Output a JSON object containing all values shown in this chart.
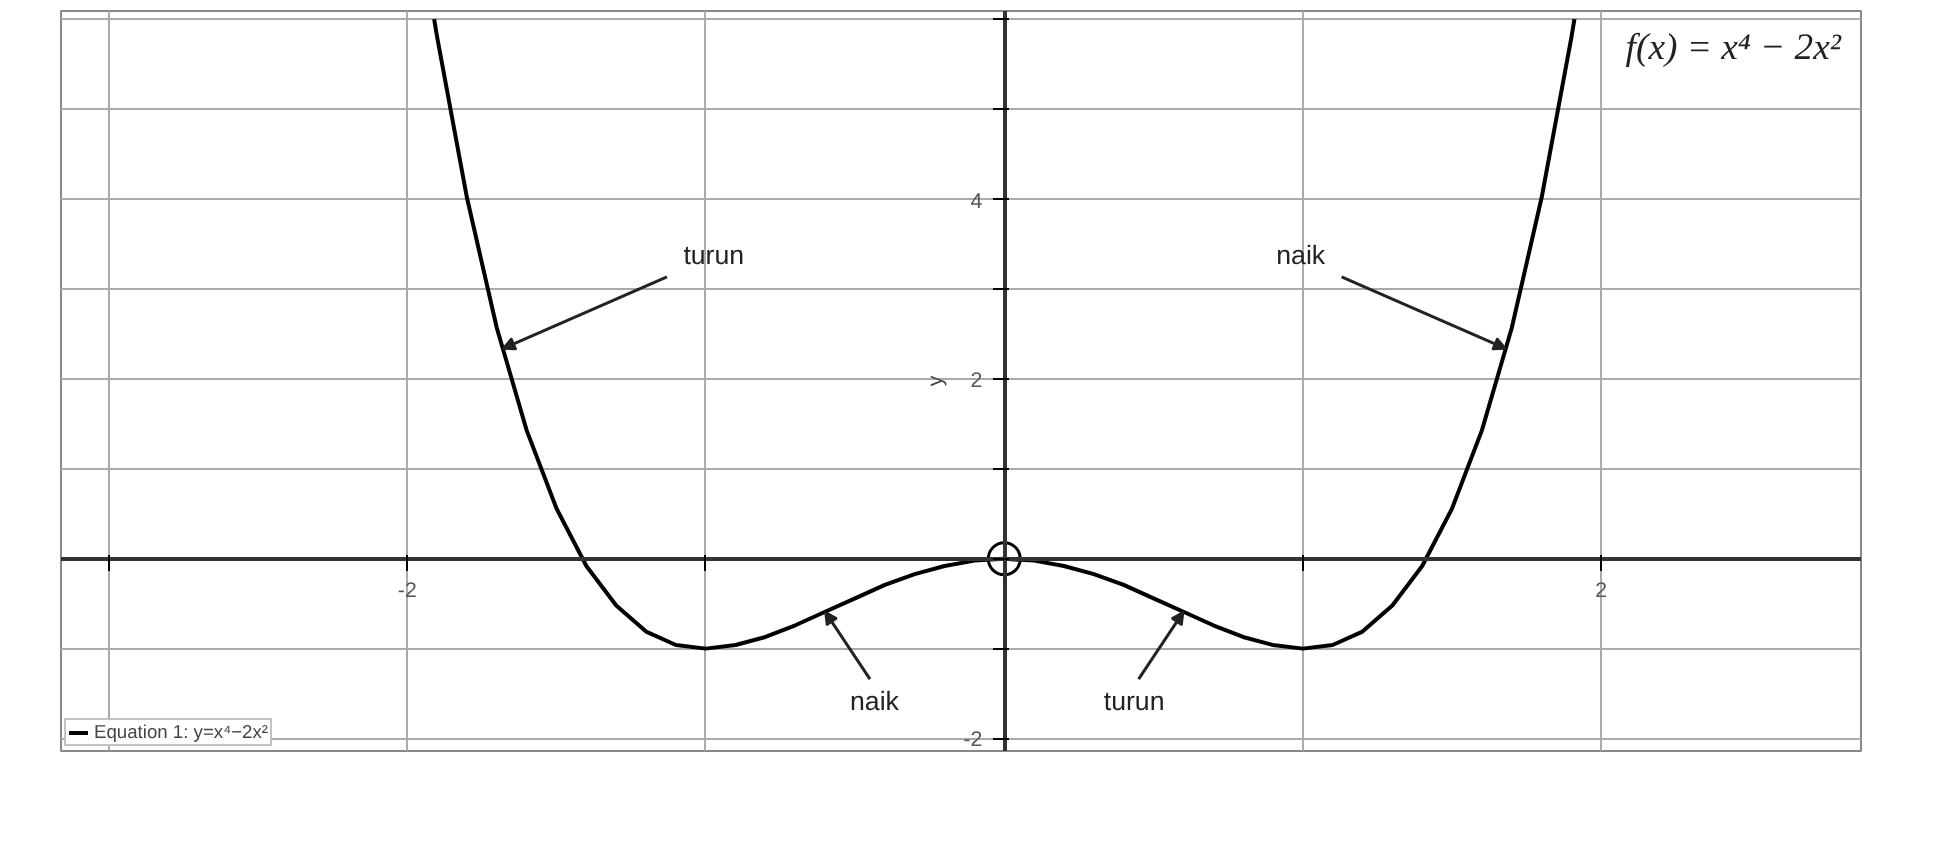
{
  "chart_data": {
    "type": "line",
    "title": "f(x) = x⁴ − 2x²",
    "ylabel": "y",
    "xlim": [
      -3.16,
      2.87
    ],
    "ylim": [
      -2.14,
      6.1
    ],
    "xticks": [
      {
        "value": -3,
        "label": null
      },
      -2,
      {
        "value": -1,
        "label": null
      },
      {
        "value": 0,
        "label": null
      },
      {
        "value": 1,
        "label": null
      },
      2
    ],
    "yticks": [
      -2,
      {
        "value": -1,
        "label": null
      },
      {
        "value": 0,
        "label": null
      },
      {
        "value": 1,
        "label": null
      },
      2,
      {
        "value": 3,
        "label": null
      },
      4,
      {
        "value": 5,
        "label": null
      },
      {
        "value": 6,
        "label": null
      }
    ],
    "grid": true,
    "legend": "bottom left",
    "series": [
      {
        "name": "Equation 1: y=x⁴−2x²",
        "color": "#000000",
        "marker": "none",
        "x": [
          -1.91,
          -1.9,
          -1.8,
          -1.7,
          -1.6,
          -1.5,
          -1.4,
          -1.3,
          -1.2,
          -1.1,
          -1.0,
          -0.9,
          -0.8,
          -0.7,
          -0.6,
          -0.5,
          -0.4,
          -0.3,
          -0.2,
          -0.1,
          0,
          0.1,
          0.2,
          0.3,
          0.4,
          0.5,
          0.6,
          0.7,
          0.8,
          0.9,
          1.0,
          1.1,
          1.2,
          1.3,
          1.4,
          1.5,
          1.6,
          1.7,
          1.8,
          1.9,
          1.91
        ],
        "values": [
          6.01,
          5.81,
          4.02,
          2.57,
          1.43,
          0.56,
          -0.08,
          -0.52,
          -0.81,
          -0.96,
          -1,
          -0.96,
          -0.87,
          -0.74,
          -0.59,
          -0.44,
          -0.29,
          -0.17,
          -0.08,
          -0.02,
          0,
          -0.02,
          -0.08,
          -0.17,
          -0.29,
          -0.44,
          -0.59,
          -0.74,
          -0.87,
          -0.96,
          -1,
          -0.96,
          -0.81,
          -0.52,
          -0.08,
          0.56,
          1.43,
          2.57,
          4.02,
          5.81,
          6.01
        ]
      },
      {
        "type": "scatter",
        "color": "#000000",
        "marker": "circle",
        "x": [
          0
        ],
        "values": [
          0
        ]
      }
    ],
    "annotations": [
      {
        "text": "turun",
        "x": -1.68,
        "y": 2.34
      },
      {
        "text": "naik",
        "x": 1.68,
        "y": 2.34
      },
      {
        "text": "naik",
        "x": -0.6,
        "y": -0.59
      },
      {
        "text": "turun",
        "x": 0.6,
        "y": -0.59
      }
    ]
  }
}
